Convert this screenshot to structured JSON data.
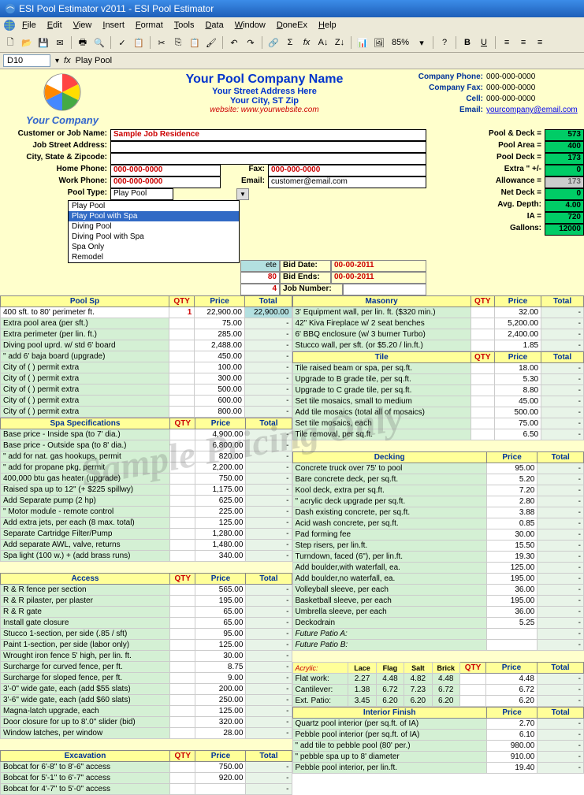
{
  "window": {
    "title": "ESI Pool Estimator v2011 - ESI Pool Estimator"
  },
  "menus": [
    "File",
    "Edit",
    "View",
    "Insert",
    "Format",
    "Tools",
    "Data",
    "Window",
    "DoneEx",
    "Help"
  ],
  "cellref": "D10",
  "formula_val": "Play Pool",
  "zoom": "85%",
  "company": {
    "your_co": "Your Company",
    "name": "Your Pool Company Name",
    "addr": "Your Street Address Here",
    "city": "Your City, ST Zip",
    "web": "website: www.yourwebsite.com",
    "phone_lbl": "Company Phone:",
    "phone": "000-000-0000",
    "fax_lbl": "Company Fax:",
    "fax": "000-000-0000",
    "cell_lbl": "Cell:",
    "cell": "000-000-0000",
    "email_lbl": "Email:",
    "email": "yourcompany@email.com"
  },
  "job": {
    "name_lbl": "Customer or Job Name:",
    "name": "Sample Job Residence",
    "street_lbl": "Job Street Address:",
    "csz_lbl": "City, State & Zipcode:",
    "home_lbl": "Home Phone:",
    "home": "000-000-0000",
    "fax_lbl": "Fax:",
    "fax": "000-000-0000",
    "work_lbl": "Work Phone:",
    "work": "000-000-0000",
    "email_lbl": "Email:",
    "email": "customer@email.com",
    "type_lbl": "Pool Type:",
    "type": "Play Pool"
  },
  "stats": [
    {
      "lbl": "Pool & Deck =",
      "val": "573",
      "cls": ""
    },
    {
      "lbl": "Pool Area =",
      "val": "400",
      "cls": ""
    },
    {
      "lbl": "Pool Deck =",
      "val": "173",
      "cls": ""
    },
    {
      "lbl": "Extra  \"  +/-",
      "val": "0",
      "cls": ""
    },
    {
      "lbl": "Allowance =",
      "val": "173",
      "cls": "gray"
    },
    {
      "lbl": "Net Deck =",
      "val": "0",
      "cls": ""
    },
    {
      "lbl": "Avg. Depth:",
      "val": "4.00",
      "cls": ""
    },
    {
      "lbl": "IA  =",
      "val": "720",
      "cls": ""
    },
    {
      "lbl": "Gallons:",
      "val": "12000",
      "cls": ""
    }
  ],
  "dd_opts": [
    "Play Pool",
    "Play Pool with Spa",
    "Diving Pool",
    "Diving Pool with Spa",
    "Spa Only",
    "Remodel"
  ],
  "dd_sel": 1,
  "mid": {
    "ete": "ete",
    "v80": "80",
    "v4": "4",
    "bid_date_lbl": "Bid Date:",
    "bid_date": "00-00-2011",
    "bid_ends_lbl": "Bid Ends:",
    "bid_ends": "00-00-2011",
    "job_num_lbl": "Job Number:"
  },
  "hdrs": {
    "pool_sp": "Pool Sp",
    "spa": "Spa Specifications",
    "access": "Access",
    "excav": "Excavation",
    "masonry": "Masonry",
    "tile": "Tile",
    "decking": "Decking",
    "interior": "Interior Finish",
    "qty": "QTY",
    "price": "Price",
    "total": "Total"
  },
  "left": {
    "pool": [
      {
        "d": "400 sft. to 80' perimeter ft.",
        "q": "1",
        "p": "22,900.00",
        "t": "22,900.00",
        "dbg": "#fff",
        "qred": true,
        "tbg": "#b3e0e0"
      },
      {
        "d": "Extra pool area (per sft.)",
        "p": "75.00"
      },
      {
        "d": "Extra perimeter (per lin. ft.)",
        "p": "285.00"
      },
      {
        "d": "Diving pool uprd. w/ std 6' board",
        "p": "2,488.00"
      },
      {
        "d": "   \"    add 6' baja board (upgrade)",
        "p": "450.00"
      },
      {
        "d": "City of (           ) permit extra",
        "p": "100.00"
      },
      {
        "d": "City of (           ) permit extra",
        "p": "300.00"
      },
      {
        "d": "City of (           ) permit extra",
        "p": "500.00"
      },
      {
        "d": "City of (           ) permit extra",
        "p": "600.00"
      },
      {
        "d": "City of (           ) permit extra",
        "p": "800.00"
      }
    ],
    "spa": [
      {
        "d": "Base price - Inside spa    (to 7' dia.)",
        "p": "4,900.00"
      },
      {
        "d": "Base price - Outside spa  (to 8' dia.)",
        "p": "6,800.00"
      },
      {
        "d": "   \"  add for nat. gas hookups, permit",
        "p": "820.00"
      },
      {
        "d": "   \"  add for propane pkg, permit",
        "p": "2,200.00"
      },
      {
        "d": "400,000 btu gas heater (upgrade)",
        "p": "750.00"
      },
      {
        "d": "Raised spa up to 12\" (+ $225 spillwy)",
        "p": "1,175.00"
      },
      {
        "d": "Add Separate pump (2 hp)",
        "p": "625.00"
      },
      {
        "d": "  \" Motor module - remote control",
        "p": "225.00"
      },
      {
        "d": "Add extra jets, per each (8 max. total)",
        "p": "125.00"
      },
      {
        "d": "Separate Cartridge Filter/Pump",
        "p": "1,280.00"
      },
      {
        "d": "Add separate AWL, valve, returns",
        "p": "1,480.00"
      },
      {
        "d": "Spa light (100 w.) + (add brass runs)",
        "p": "340.00"
      }
    ],
    "access": [
      {
        "d": "R & R fence per section",
        "p": "565.00"
      },
      {
        "d": "R & R pilaster, per plaster",
        "p": "195.00"
      },
      {
        "d": "R & R gate",
        "p": "65.00"
      },
      {
        "d": "Install gate closure",
        "p": "65.00"
      },
      {
        "d": "Stucco 1-section, per side (.85 / sft)",
        "p": "95.00"
      },
      {
        "d": "Paint 1-section, per side (labor only)",
        "p": "125.00"
      },
      {
        "d": "Wrought iron fence 5' high, per lin. ft.",
        "p": "30.00"
      },
      {
        "d": "Surcharge for curved fence, per ft.",
        "p": "8.75"
      },
      {
        "d": "Surcharge for sloped fence, per ft.",
        "p": "9.00"
      },
      {
        "d": "3'-0\" wide gate, each (add $55 slats)",
        "p": "200.00"
      },
      {
        "d": "3'-6\" wide gate, each (add $60 slats)",
        "p": "250.00"
      },
      {
        "d": "Magna-latch upgrade, each",
        "p": "125.00"
      },
      {
        "d": "Door closure for up to 8'.0\" slider (bid)",
        "p": "320.00"
      },
      {
        "d": "Window latches, per window",
        "p": "28.00"
      }
    ],
    "excav": [
      {
        "d": "Bobcat for 6'-8\" to 8'-6\" access",
        "p": "750.00"
      },
      {
        "d": "Bobcat for 5'-1\" to 6'-7\" access",
        "p": "920.00"
      },
      {
        "d": "Bobcat for 4'-7\" to 5'-0\" access",
        "p": ""
      }
    ]
  },
  "right": {
    "masonry": [
      {
        "d": "3' Equipment wall, per lin. ft. ($320 min.)",
        "p": "32.00"
      },
      {
        "d": "42\" Kiva Fireplace w/ 2 seat benches",
        "p": "5,200.00"
      },
      {
        "d": "6' BBQ enclosure (w/ 3 burner Turbo)",
        "p": "2,400.00"
      },
      {
        "d": "Stucco wall, per sft.  (or $5.20 / lin.ft.)",
        "p": "1.85"
      }
    ],
    "tile": [
      {
        "d": "Tile raised beam or spa, per sq.ft.",
        "p": "18.00"
      },
      {
        "d": "Upgrade to B grade tile, per sq.ft.",
        "p": "5.30"
      },
      {
        "d": "Upgrade to C grade tile, per sq.ft.",
        "p": "8.80"
      },
      {
        "d": "Set tile mosaics, small to medium",
        "p": "45.00"
      },
      {
        "d": "Add tile mosaics (total all of mosaics)",
        "p": "500.00"
      },
      {
        "d": "Set tile mosaics, each",
        "p": "75.00"
      },
      {
        "d": "Tile removal, per sq.ft.",
        "p": "6.50"
      }
    ],
    "decking": [
      {
        "d": "Concrete truck over 75' to pool",
        "p": "95.00"
      },
      {
        "d": "Bare concrete deck, per sq.ft.",
        "p": "5.20"
      },
      {
        "d": "Kool deck, extra per sq.ft.",
        "p": "7.20"
      },
      {
        "d": "    \"   acrylic deck upgrade per sq.ft.",
        "p": "2.80"
      },
      {
        "d": "Dash existing concrete, per sq.ft.",
        "p": "3.88"
      },
      {
        "d": "Acid wash concrete, per sq.ft.",
        "p": "0.85"
      },
      {
        "d": "Pad forming fee",
        "p": "30.00"
      },
      {
        "d": "Step risers, per lin.ft.",
        "p": "15.50"
      },
      {
        "d": "Turndown, faced (6\"), per lin.ft.",
        "p": "19.30"
      },
      {
        "d": "Add boulder,with waterfall, ea.",
        "p": "125.00"
      },
      {
        "d": "Add boulder,no waterfall, ea.",
        "p": "195.00"
      },
      {
        "d": "Volleyball sleeve, per each",
        "p": "36.00"
      },
      {
        "d": "Basketball sleeve, per each",
        "p": "195.00"
      },
      {
        "d": "Umbrella sleeve, per each",
        "p": "36.00"
      },
      {
        "d": "Deckodrain",
        "p": "5.25"
      },
      {
        "d": "Future Patio A:",
        "ital": true,
        "p": ""
      },
      {
        "d": "Future Patio B:",
        "ital": true,
        "p": ""
      }
    ],
    "acrylic": {
      "lbl": "Acrylic:",
      "h": [
        "Lace",
        "Flag",
        "Salt",
        "Brick"
      ],
      "rows": [
        {
          "d": "Flat work:",
          "v": [
            "2.27",
            "4.48",
            "4.82",
            "4.48"
          ],
          "p": "4.48"
        },
        {
          "d": "Cantilever:",
          "v": [
            "1.38",
            "6.72",
            "7.23",
            "6.72"
          ],
          "p": "6.72"
        },
        {
          "d": "Ext. Patio:",
          "v": [
            "3.45",
            "6.20",
            "6.20",
            "6.20"
          ],
          "p": "6.20"
        }
      ]
    },
    "interior": [
      {
        "d": "Quartz pool interior  (per sq.ft. of IA)",
        "p": "2.70"
      },
      {
        "d": "Pebble pool interior (per sq.ft. of IA)",
        "p": "6.10"
      },
      {
        "d": "      \"  add tile to pebble pool (80' per.)",
        "p": "980.00"
      },
      {
        "d": "      \"  pebble spa up to 8' diameter",
        "p": "910.00"
      },
      {
        "d": "Pebble pool interior, per lin.ft.",
        "p": "19.40"
      }
    ]
  },
  "watermark": "Sample Pricing Only"
}
